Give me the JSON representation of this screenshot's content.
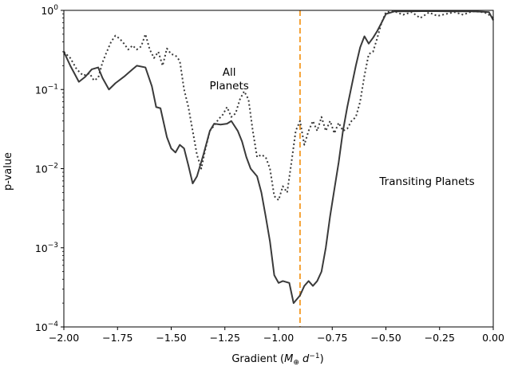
{
  "chart_data": {
    "type": "line",
    "title": "",
    "xlabel": "Gradient (",
    "xlabel_sym": "M",
    "xlabel_sub": "⊕",
    "xlabel_d": " d",
    "xlabel_sup": "−1",
    "xlabel_end": ")",
    "ylabel": "p-value",
    "xlim": [
      -2.0,
      0.0
    ],
    "ylim": [
      0.0001,
      1
    ],
    "yscale": "log",
    "grid": false,
    "x_ticks": [
      -2.0,
      -1.75,
      -1.5,
      -1.25,
      -1.0,
      -0.75,
      -0.5,
      -0.25,
      0.0
    ],
    "x_tick_labels": [
      "−2.00",
      "−1.75",
      "−1.50",
      "−1.25",
      "−1.00",
      "−0.75",
      "−0.50",
      "−0.25",
      "0.00"
    ],
    "y_ticks": [
      0.0001,
      0.001,
      0.01,
      0.1,
      1
    ],
    "y_tick_labels": [
      {
        "base": "10",
        "exp": "−4"
      },
      {
        "base": "10",
        "exp": "−3"
      },
      {
        "base": "10",
        "exp": "−2"
      },
      {
        "base": "10",
        "exp": "−1"
      },
      {
        "base": "10",
        "exp": "0"
      }
    ],
    "vline": {
      "x": -0.9,
      "color": "#f5a033",
      "style": "dashed"
    },
    "annotations": [
      {
        "lines": [
          "All",
          "Planets"
        ],
        "x": -1.23,
        "y": 0.15
      },
      {
        "lines": [
          "Transiting Planets"
        ],
        "x": -0.53,
        "y": 0.0062
      }
    ],
    "series": [
      {
        "style": "solid",
        "color": "#3a3a3a",
        "points": [
          [
            -2.0,
            0.3
          ],
          [
            -1.97,
            0.2
          ],
          [
            -1.93,
            0.125
          ],
          [
            -1.9,
            0.145
          ],
          [
            -1.87,
            0.18
          ],
          [
            -1.84,
            0.19
          ],
          [
            -1.82,
            0.14
          ],
          [
            -1.79,
            0.1
          ],
          [
            -1.76,
            0.12
          ],
          [
            -1.72,
            0.145
          ],
          [
            -1.68,
            0.18
          ],
          [
            -1.66,
            0.2
          ],
          [
            -1.62,
            0.19
          ],
          [
            -1.59,
            0.11
          ],
          [
            -1.57,
            0.06
          ],
          [
            -1.55,
            0.058
          ],
          [
            -1.52,
            0.025
          ],
          [
            -1.5,
            0.018
          ],
          [
            -1.48,
            0.016
          ],
          [
            -1.46,
            0.02
          ],
          [
            -1.44,
            0.018
          ],
          [
            -1.42,
            0.011
          ],
          [
            -1.4,
            0.0065
          ],
          [
            -1.38,
            0.008
          ],
          [
            -1.35,
            0.015
          ],
          [
            -1.32,
            0.03
          ],
          [
            -1.3,
            0.037
          ],
          [
            -1.27,
            0.036
          ],
          [
            -1.24,
            0.037
          ],
          [
            -1.22,
            0.04
          ],
          [
            -1.19,
            0.03
          ],
          [
            -1.17,
            0.022
          ],
          [
            -1.15,
            0.014
          ],
          [
            -1.13,
            0.01
          ],
          [
            -1.1,
            0.008
          ],
          [
            -1.08,
            0.005
          ],
          [
            -1.06,
            0.0025
          ],
          [
            -1.04,
            0.0012
          ],
          [
            -1.02,
            0.00045
          ],
          [
            -1.0,
            0.00036
          ],
          [
            -0.98,
            0.00038
          ],
          [
            -0.95,
            0.00036
          ],
          [
            -0.93,
            0.0002
          ],
          [
            -0.9,
            0.00025
          ],
          [
            -0.88,
            0.00033
          ],
          [
            -0.86,
            0.00038
          ],
          [
            -0.84,
            0.00033
          ],
          [
            -0.82,
            0.00038
          ],
          [
            -0.8,
            0.0005
          ],
          [
            -0.78,
            0.001
          ],
          [
            -0.76,
            0.0025
          ],
          [
            -0.74,
            0.0055
          ],
          [
            -0.72,
            0.012
          ],
          [
            -0.7,
            0.03
          ],
          [
            -0.68,
            0.06
          ],
          [
            -0.66,
            0.11
          ],
          [
            -0.64,
            0.2
          ],
          [
            -0.62,
            0.34
          ],
          [
            -0.6,
            0.47
          ],
          [
            -0.58,
            0.38
          ],
          [
            -0.56,
            0.45
          ],
          [
            -0.54,
            0.55
          ],
          [
            -0.52,
            0.7
          ],
          [
            -0.5,
            0.9
          ],
          [
            -0.46,
            0.97
          ],
          [
            -0.4,
            0.97
          ],
          [
            -0.3,
            0.98
          ],
          [
            -0.2,
            0.97
          ],
          [
            -0.1,
            0.97
          ],
          [
            -0.05,
            0.96
          ],
          [
            -0.02,
            0.95
          ],
          [
            0.0,
            0.75
          ]
        ]
      },
      {
        "style": "dotted",
        "color": "#3a3a3a",
        "points": [
          [
            -2.0,
            0.3
          ],
          [
            -1.97,
            0.25
          ],
          [
            -1.94,
            0.18
          ],
          [
            -1.91,
            0.15
          ],
          [
            -1.88,
            0.16
          ],
          [
            -1.86,
            0.13
          ],
          [
            -1.84,
            0.14
          ],
          [
            -1.82,
            0.22
          ],
          [
            -1.8,
            0.3
          ],
          [
            -1.78,
            0.4
          ],
          [
            -1.76,
            0.48
          ],
          [
            -1.74,
            0.44
          ],
          [
            -1.72,
            0.38
          ],
          [
            -1.7,
            0.32
          ],
          [
            -1.68,
            0.36
          ],
          [
            -1.66,
            0.32
          ],
          [
            -1.64,
            0.35
          ],
          [
            -1.62,
            0.5
          ],
          [
            -1.6,
            0.32
          ],
          [
            -1.58,
            0.25
          ],
          [
            -1.56,
            0.3
          ],
          [
            -1.54,
            0.2
          ],
          [
            -1.52,
            0.33
          ],
          [
            -1.5,
            0.28
          ],
          [
            -1.48,
            0.27
          ],
          [
            -1.46,
            0.23
          ],
          [
            -1.44,
            0.1
          ],
          [
            -1.42,
            0.06
          ],
          [
            -1.4,
            0.03
          ],
          [
            -1.38,
            0.015
          ],
          [
            -1.36,
            0.01
          ],
          [
            -1.34,
            0.018
          ],
          [
            -1.32,
            0.03
          ],
          [
            -1.3,
            0.035
          ],
          [
            -1.28,
            0.042
          ],
          [
            -1.26,
            0.048
          ],
          [
            -1.24,
            0.06
          ],
          [
            -1.22,
            0.045
          ],
          [
            -1.2,
            0.05
          ],
          [
            -1.18,
            0.075
          ],
          [
            -1.16,
            0.095
          ],
          [
            -1.14,
            0.075
          ],
          [
            -1.12,
            0.03
          ],
          [
            -1.1,
            0.014
          ],
          [
            -1.08,
            0.015
          ],
          [
            -1.06,
            0.014
          ],
          [
            -1.04,
            0.01
          ],
          [
            -1.02,
            0.0045
          ],
          [
            -1.0,
            0.004
          ],
          [
            -0.98,
            0.006
          ],
          [
            -0.96,
            0.005
          ],
          [
            -0.94,
            0.012
          ],
          [
            -0.92,
            0.03
          ],
          [
            -0.9,
            0.04
          ],
          [
            -0.88,
            0.02
          ],
          [
            -0.86,
            0.03
          ],
          [
            -0.84,
            0.04
          ],
          [
            -0.82,
            0.03
          ],
          [
            -0.8,
            0.045
          ],
          [
            -0.78,
            0.03
          ],
          [
            -0.76,
            0.04
          ],
          [
            -0.74,
            0.028
          ],
          [
            -0.72,
            0.038
          ],
          [
            -0.7,
            0.03
          ],
          [
            -0.68,
            0.032
          ],
          [
            -0.66,
            0.04
          ],
          [
            -0.64,
            0.045
          ],
          [
            -0.62,
            0.07
          ],
          [
            -0.6,
            0.15
          ],
          [
            -0.58,
            0.28
          ],
          [
            -0.56,
            0.3
          ],
          [
            -0.54,
            0.45
          ],
          [
            -0.52,
            0.7
          ],
          [
            -0.5,
            0.95
          ],
          [
            -0.46,
            0.97
          ],
          [
            -0.42,
            0.88
          ],
          [
            -0.38,
            0.95
          ],
          [
            -0.34,
            0.8
          ],
          [
            -0.3,
            0.94
          ],
          [
            -0.26,
            0.85
          ],
          [
            -0.22,
            0.9
          ],
          [
            -0.18,
            0.95
          ],
          [
            -0.14,
            0.88
          ],
          [
            -0.1,
            0.97
          ],
          [
            -0.06,
            0.96
          ],
          [
            -0.03,
            0.92
          ],
          [
            0.0,
            0.8
          ]
        ]
      }
    ]
  }
}
